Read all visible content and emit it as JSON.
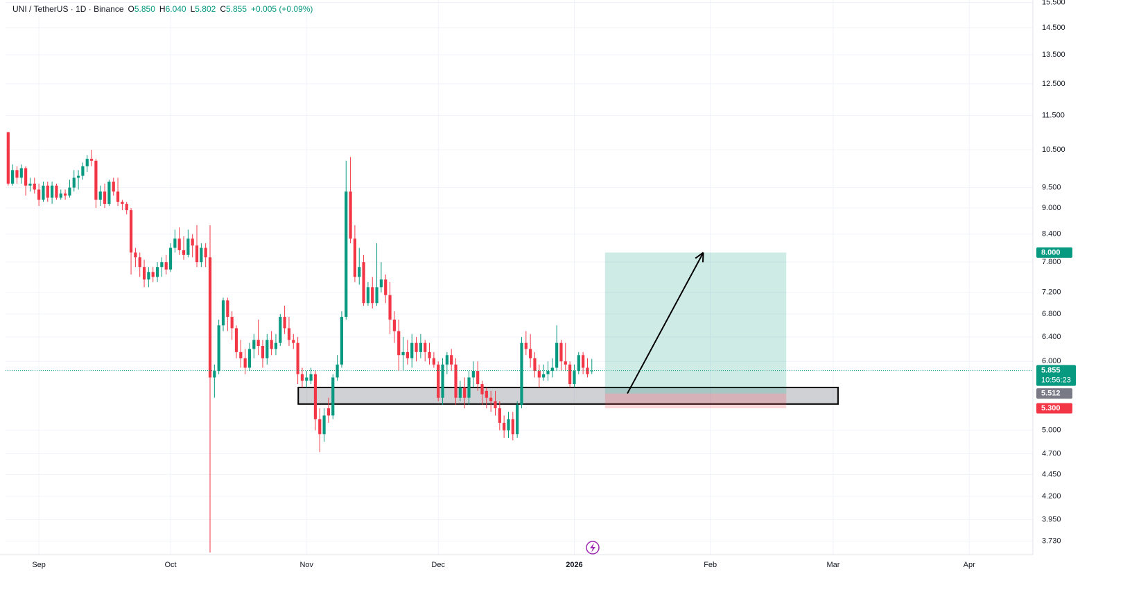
{
  "chart_data": {
    "type": "candlestick",
    "header": {
      "symbol": "UNI / TetherUS · 1D · Binance",
      "ohlc": [
        {
          "label": "O",
          "value": "5.850"
        },
        {
          "label": "H",
          "value": "6.040"
        },
        {
          "label": "L",
          "value": "5.802"
        },
        {
          "label": "C",
          "value": "5.855"
        }
      ],
      "change": "+0.005 (+0.09%)"
    },
    "log_scale": true,
    "grid": true,
    "up_color": "#089981",
    "down_color": "#f23645",
    "xlim": [
      -0.6,
      233.5
    ],
    "xticks": [
      {
        "value": 7,
        "label": "Sep"
      },
      {
        "value": 37,
        "label": "Oct"
      },
      {
        "value": 68,
        "label": "Nov"
      },
      {
        "value": 98,
        "label": "Dec"
      },
      {
        "value": 129,
        "label": "2026"
      },
      {
        "value": 160,
        "label": "Feb"
      },
      {
        "value": 188,
        "label": "Mar"
      },
      {
        "value": 219,
        "label": "Apr"
      }
    ],
    "ylim": [
      3.6,
      15.6
    ],
    "yticks": [
      {
        "value": 3.73,
        "label": "3.730"
      },
      {
        "value": 3.95,
        "label": "3.950"
      },
      {
        "value": 4.2,
        "label": "4.200"
      },
      {
        "value": 4.45,
        "label": "4.450"
      },
      {
        "value": 4.7,
        "label": "4.700"
      },
      {
        "value": 5,
        "label": "5.000"
      },
      {
        "value": 6,
        "label": "6.000"
      },
      {
        "value": 6.4,
        "label": "6.400"
      },
      {
        "value": 6.8,
        "label": "6.800"
      },
      {
        "value": 7.2,
        "label": "7.200"
      },
      {
        "value": 7.8,
        "label": "7.800"
      },
      {
        "value": 8.4,
        "label": "8.400"
      },
      {
        "value": 9,
        "label": "9.000"
      },
      {
        "value": 9.5,
        "label": "9.500"
      },
      {
        "value": 10.5,
        "label": "10.500"
      },
      {
        "value": 11.5,
        "label": "11.500"
      },
      {
        "value": 12.5,
        "label": "12.500"
      },
      {
        "value": 13.5,
        "label": "13.500"
      },
      {
        "value": 14.5,
        "label": "14.500"
      },
      {
        "value": 15.5,
        "label": "15.500"
      }
    ],
    "open": [
      11,
      9.6,
      9.95,
      9.75,
      10,
      9.55,
      9.6,
      9.45,
      9.2,
      9.55,
      9.25,
      9.55,
      9.25,
      9.35,
      9.3,
      9.5,
      9.75,
      9.8,
      10.05,
      10.25,
      10.2,
      9.2,
      9.4,
      9.1,
      9.65,
      9.4,
      9.15,
      9.1,
      8.95,
      8,
      7.9,
      7.7,
      7.45,
      7.6,
      7.5,
      7.7,
      7.8,
      7.65,
      8.1,
      8.3,
      8.05,
      7.95,
      8.3,
      8.15,
      7.8,
      8.1,
      7.9,
      5.75,
      5.85,
      6.6,
      7.05,
      6.75,
      6.55,
      6.15,
      6.05,
      5.9,
      6.2,
      6.35,
      6.25,
      6.05,
      6.35,
      6.2,
      6.3,
      6.75,
      6.55,
      6.35,
      6.3,
      5.8,
      5.7,
      5.7,
      5.8,
      5.15,
      4.95,
      5.3,
      5.2,
      5.75,
      5.95,
      6.75,
      9.4,
      8.3,
      7.5,
      7.8,
      7,
      7.3,
      7,
      7.3,
      7.45,
      7.15,
      6.7,
      6.5,
      6.1,
      6.15,
      6.05,
      6.3,
      6.15,
      6.3,
      6.15,
      6.05,
      5.95,
      5.45,
      5.95,
      6.1,
      5.95,
      5.45,
      5.6,
      5.45,
      5.75,
      5.85,
      5.65,
      5.55,
      5.45,
      5.4,
      5.3,
      5.1,
      5,
      5.15,
      4.95,
      5.35,
      6.3,
      6.2,
      6.05,
      5.85,
      5.75,
      5.8,
      5.85,
      5.9,
      6.3,
      6,
      5.95,
      5.65,
      5.85,
      6.1,
      5.9,
      5.85
    ],
    "high": [
      11,
      10.1,
      10.05,
      10.1,
      10.05,
      9.75,
      9.75,
      9.6,
      9.65,
      9.65,
      9.65,
      9.6,
      9.45,
      9.45,
      9.7,
      9.95,
      9.95,
      10.15,
      10.35,
      10.5,
      10.25,
      9.55,
      9.6,
      9.7,
      9.75,
      9.75,
      9.2,
      9.15,
      9,
      8.1,
      8,
      7.85,
      7.7,
      7.7,
      7.8,
      7.9,
      7.95,
      8.2,
      8.5,
      8.55,
      8.35,
      8.5,
      8.4,
      8.6,
      8.2,
      8.2,
      8.6,
      5.95,
      6.7,
      7.1,
      7.1,
      6.85,
      6.6,
      6.35,
      6.2,
      6.3,
      6.45,
      6.7,
      6.35,
      6.45,
      6.5,
      6.45,
      6.8,
      6.95,
      6.75,
      6.45,
      6.4,
      5.9,
      5.85,
      5.9,
      5.85,
      5.3,
      5.3,
      5.45,
      5.8,
      6.1,
      6.85,
      10.2,
      10.3,
      8.6,
      8.1,
      7.95,
      7.4,
      7.5,
      8.2,
      7.8,
      7.55,
      7.4,
      6.85,
      6.7,
      6.4,
      6.35,
      6.45,
      6.4,
      6.45,
      6.35,
      6.3,
      6.15,
      6,
      6.05,
      6.15,
      6.2,
      6.05,
      5.7,
      5.75,
      5.85,
      6,
      6,
      5.7,
      5.6,
      5.55,
      5.55,
      5.4,
      5.2,
      5.25,
      5.25,
      5.4,
      6.4,
      6.5,
      6.45,
      6.15,
      5.95,
      5.95,
      6,
      6.05,
      6.6,
      6.35,
      6.3,
      6,
      5.95,
      6.15,
      6.15,
      6.05,
      6.04
    ],
    "low": [
      9.55,
      9.55,
      9.6,
      9.6,
      9.3,
      9.4,
      9.35,
      9.05,
      9.15,
      9.15,
      9.1,
      9.2,
      9.2,
      9.2,
      9.25,
      9.4,
      9.45,
      9.7,
      9.9,
      10.05,
      9,
      9.05,
      9,
      9.05,
      9.3,
      9.05,
      8.95,
      8.85,
      7.55,
      7.7,
      7.5,
      7.3,
      7.3,
      7.4,
      7.4,
      7.5,
      7.55,
      7.6,
      8,
      7.95,
      7.85,
      7.9,
      7.9,
      7.7,
      7.7,
      7.7,
      3.62,
      5.45,
      5.8,
      6.5,
      6.5,
      6.35,
      6.05,
      5.9,
      5.8,
      5.85,
      6.05,
      6.1,
      5.9,
      5.95,
      6.1,
      6.1,
      6.25,
      6.45,
      6.25,
      6.2,
      5.65,
      5.6,
      5.6,
      5.65,
      5,
      4.72,
      4.85,
      5.1,
      5.15,
      5.7,
      5.9,
      6.7,
      8.2,
      7.4,
      7.35,
      6.95,
      6.95,
      6.9,
      6.95,
      7.2,
      7,
      6.45,
      6.3,
      5.85,
      5.85,
      5.95,
      5.9,
      6,
      6.05,
      6,
      5.95,
      5.9,
      5.4,
      5.35,
      5.8,
      5.85,
      5.35,
      5.4,
      5.3,
      5.35,
      5.6,
      5.55,
      5.35,
      5.3,
      5.25,
      5.2,
      5,
      4.9,
      4.9,
      4.87,
      4.9,
      5.3,
      6.1,
      5.9,
      5.75,
      5.6,
      5.7,
      5.7,
      5.75,
      5.85,
      5.85,
      5.85,
      5.6,
      5.6,
      5.8,
      5.8,
      5.75,
      5.802
    ],
    "close": [
      9.6,
      9.95,
      9.75,
      10,
      9.55,
      9.6,
      9.45,
      9.2,
      9.55,
      9.25,
      9.55,
      9.25,
      9.35,
      9.3,
      9.5,
      9.75,
      9.8,
      10.05,
      10.25,
      10.2,
      9.2,
      9.4,
      9.1,
      9.65,
      9.4,
      9.15,
      9.1,
      8.95,
      8,
      7.9,
      7.7,
      7.45,
      7.6,
      7.5,
      7.7,
      7.8,
      7.65,
      8.1,
      8.3,
      8.05,
      7.95,
      8.3,
      8.15,
      7.8,
      8.1,
      7.9,
      5.75,
      5.85,
      6.6,
      7.05,
      6.75,
      6.55,
      6.15,
      6.05,
      5.9,
      6.2,
      6.35,
      6.25,
      6.05,
      6.35,
      6.2,
      6.3,
      6.75,
      6.55,
      6.35,
      6.3,
      5.8,
      5.7,
      5.75,
      5.8,
      5.15,
      4.95,
      5.2,
      5.2,
      5.75,
      5.95,
      6.75,
      9.4,
      8.3,
      7.5,
      7.7,
      7,
      7.3,
      7,
      7.3,
      7.45,
      7.15,
      6.7,
      6.5,
      6.1,
      6.15,
      6.05,
      6.3,
      6.15,
      6.3,
      6.15,
      6.05,
      5.95,
      5.45,
      5.95,
      6.1,
      5.95,
      5.45,
      5.6,
      5.45,
      5.75,
      5.85,
      5.65,
      5.5,
      5.45,
      5.4,
      5.3,
      5.1,
      5,
      5.15,
      4.95,
      5.35,
      6.3,
      6.2,
      6.05,
      5.85,
      5.75,
      5.8,
      5.85,
      5.9,
      6.3,
      6,
      5.95,
      5.65,
      5.85,
      6.1,
      5.9,
      5.8,
      5.855
    ],
    "last_price": 5.855,
    "countdown": "10:56:23",
    "position": {
      "x": [
        136,
        177.3
      ],
      "target": {
        "value": 8,
        "label": "8.000"
      },
      "entry": 5.512,
      "stop": {
        "value": 5.3,
        "label": "5.300"
      }
    },
    "zone": {
      "x": [
        66.1,
        189.1
      ],
      "y": [
        5.36,
        5.6
      ]
    },
    "arrow": {
      "x": [
        141.1,
        158.4
      ]
    }
  }
}
